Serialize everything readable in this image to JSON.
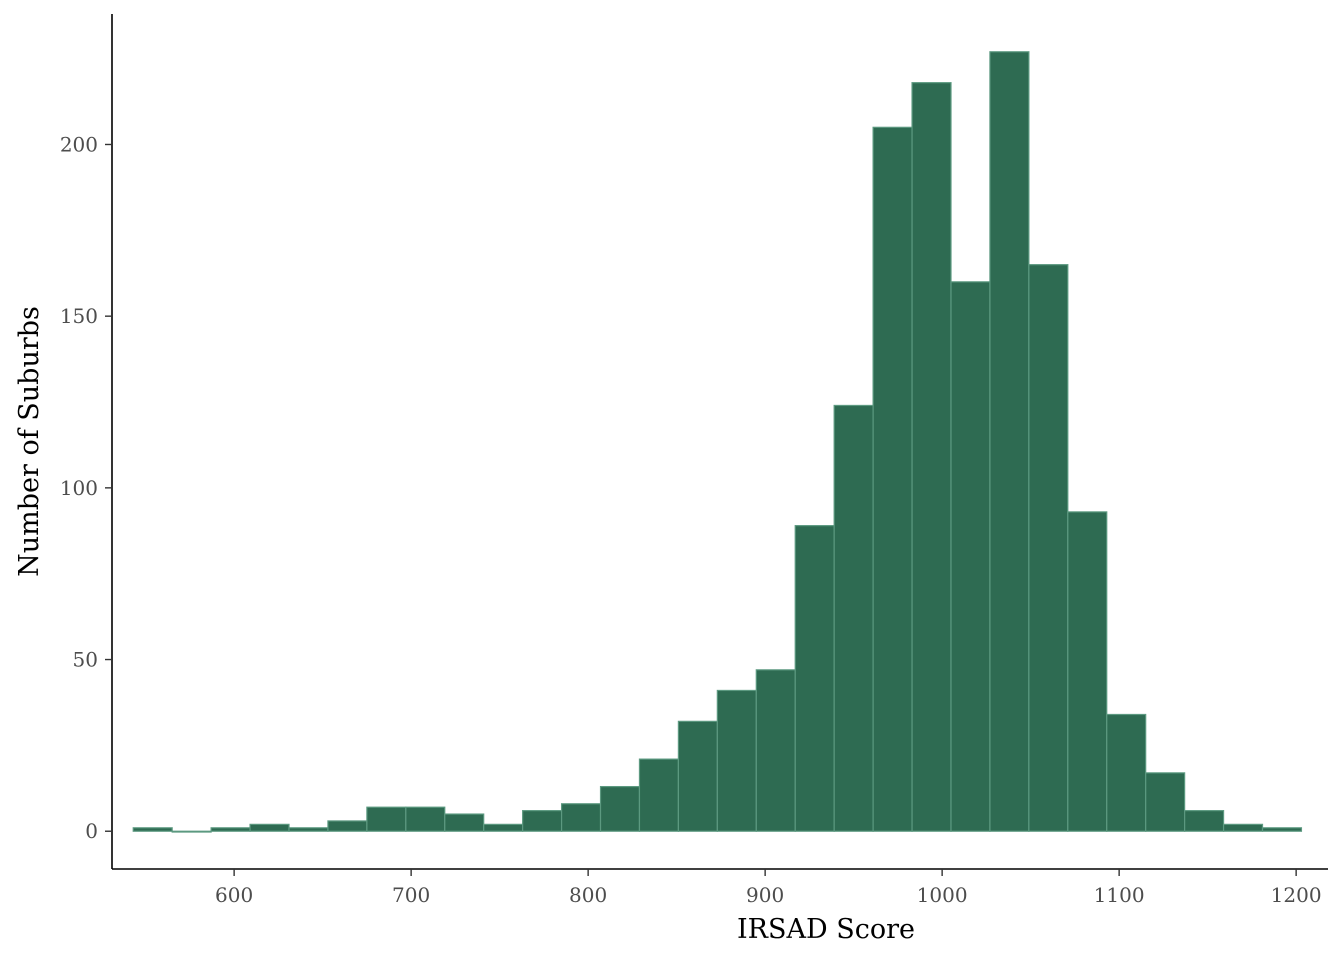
{
  "chart_data": {
    "type": "bar",
    "subtype": "histogram",
    "title": "",
    "xlabel": "IRSAD Score",
    "ylabel": "Number of Suburbs",
    "xlim": [
      531,
      1218
    ],
    "ylim": [
      -11,
      238
    ],
    "x_ticks": [
      600,
      700,
      800,
      900,
      1000,
      1100,
      1200
    ],
    "y_ticks": [
      0,
      50,
      100,
      150,
      200
    ],
    "bin_width": 22,
    "bins": [
      {
        "x0": 543,
        "x1": 565,
        "count": 1
      },
      {
        "x0": 565,
        "x1": 587,
        "count": 0
      },
      {
        "x0": 587,
        "x1": 609,
        "count": 1
      },
      {
        "x0": 609,
        "x1": 631,
        "count": 2
      },
      {
        "x0": 631,
        "x1": 653,
        "count": 1
      },
      {
        "x0": 653,
        "x1": 675,
        "count": 3
      },
      {
        "x0": 675,
        "x1": 697,
        "count": 7
      },
      {
        "x0": 697,
        "x1": 719,
        "count": 7
      },
      {
        "x0": 719,
        "x1": 741,
        "count": 5
      },
      {
        "x0": 741,
        "x1": 763,
        "count": 2
      },
      {
        "x0": 763,
        "x1": 785,
        "count": 6
      },
      {
        "x0": 785,
        "x1": 807,
        "count": 8
      },
      {
        "x0": 807,
        "x1": 829,
        "count": 13
      },
      {
        "x0": 829,
        "x1": 851,
        "count": 21
      },
      {
        "x0": 851,
        "x1": 873,
        "count": 32
      },
      {
        "x0": 873,
        "x1": 895,
        "count": 41
      },
      {
        "x0": 895,
        "x1": 917,
        "count": 47
      },
      {
        "x0": 917,
        "x1": 939,
        "count": 89
      },
      {
        "x0": 939,
        "x1": 961,
        "count": 124
      },
      {
        "x0": 961,
        "x1": 983,
        "count": 205
      },
      {
        "x0": 983,
        "x1": 1005,
        "count": 218
      },
      {
        "x0": 1005,
        "x1": 1027,
        "count": 160
      },
      {
        "x0": 1027,
        "x1": 1049,
        "count": 227
      },
      {
        "x0": 1049,
        "x1": 1071,
        "count": 165
      },
      {
        "x0": 1071,
        "x1": 1093,
        "count": 93
      },
      {
        "x0": 1093,
        "x1": 1115,
        "count": 34
      },
      {
        "x0": 1115,
        "x1": 1137,
        "count": 17
      },
      {
        "x0": 1137,
        "x1": 1159,
        "count": 6
      },
      {
        "x0": 1159,
        "x1": 1181,
        "count": 2
      },
      {
        "x0": 1181,
        "x1": 1203,
        "count": 1
      }
    ],
    "bar_color": "#2e6b52",
    "bar_edge_color": "#5c9980",
    "grid": false,
    "legend": "none"
  }
}
